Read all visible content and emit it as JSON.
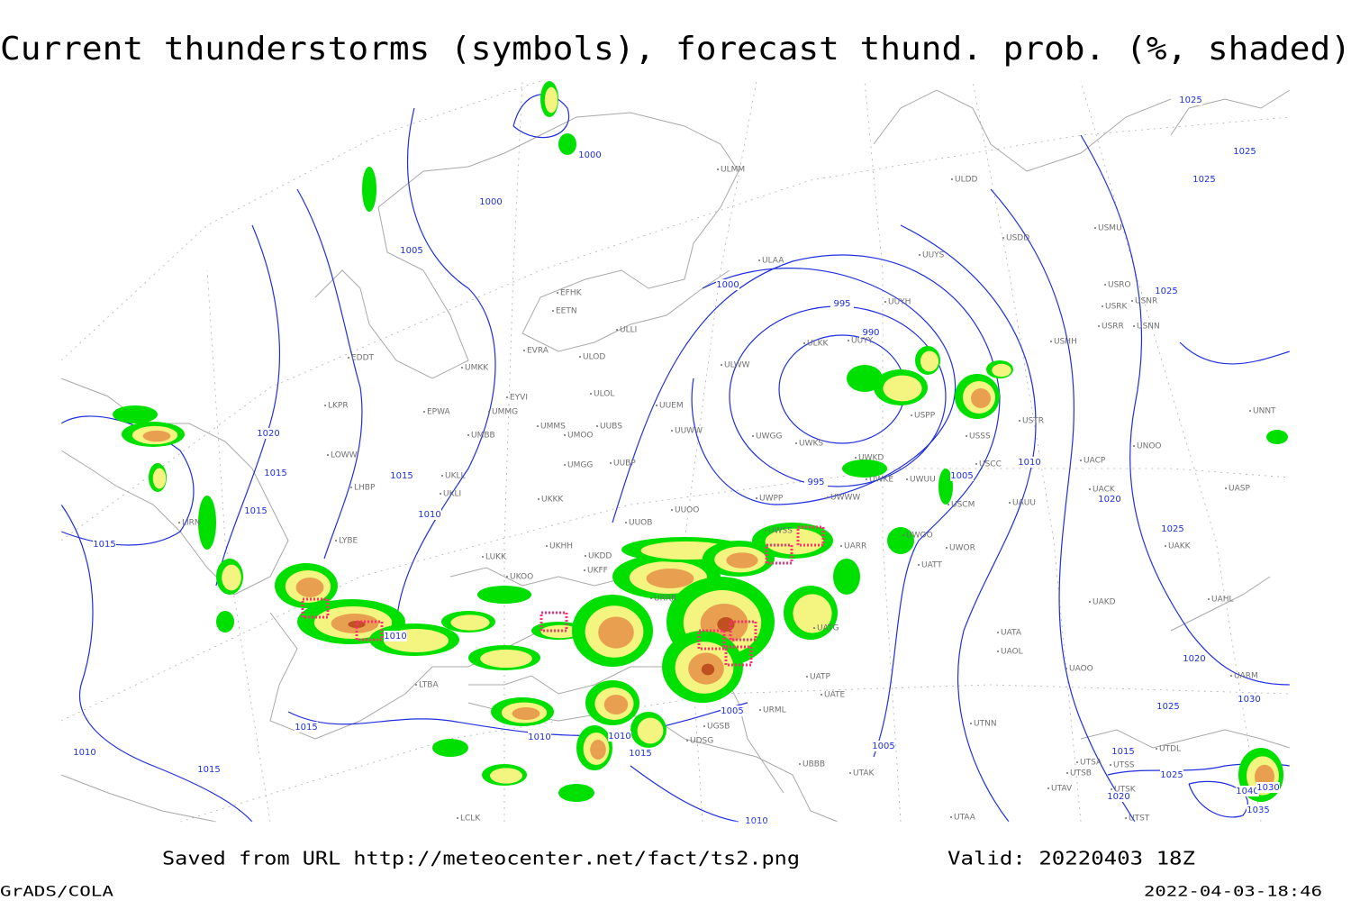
{
  "header": {
    "title": "Current thunderstorms (symbols), forecast thund. prob. (%, shaded)"
  },
  "footer": {
    "source": "Saved from URL  http://meteocenter.net/fact/ts2.png",
    "valid": "Valid: 20220403 18Z",
    "credit": "GrADS/COLA",
    "timestamp": "2022-04-03-18:46"
  },
  "map": {
    "isobar_labels": [
      1000,
      1000,
      1005,
      1000,
      995,
      990,
      1020,
      1015,
      1015,
      1015,
      1010,
      1015,
      1010,
      1005,
      1010,
      1020,
      1025,
      995,
      1015,
      1010,
      1010,
      1015,
      1005,
      1005,
      1010,
      1015,
      1010,
      1020,
      1025,
      1025,
      1025,
      1025,
      1030,
      1025,
      1015,
      1025,
      1020,
      1040,
      1030,
      1035
    ],
    "station_labels": [
      "EFHK",
      "EETN",
      "ULLI",
      "ULAA",
      "ULDD",
      "UUYS",
      "UUYH",
      "ULKK",
      "UUYY",
      "ULWW",
      "UUEM",
      "UUWW",
      "UWGG",
      "UWKS",
      "ULOL",
      "ULOD",
      "EVRA",
      "EYVI",
      "UMKK",
      "UMMG",
      "EPWA",
      "UMBB",
      "UMMS",
      "UMOO",
      "UUBS",
      "UMGG",
      "UUBP",
      "UKLL",
      "UKLI",
      "UKKK",
      "UUOO",
      "UUOB",
      "UWPP",
      "UWKE",
      "UWUU",
      "USCC",
      "USCM",
      "USSS",
      "USTR",
      "USPP",
      "UWKD",
      "UWWW",
      "UWSS",
      "UARR",
      "UWOO",
      "UWOR",
      "UATT",
      "UAOO",
      "UAOL",
      "UATA",
      "UAKD",
      "UACK",
      "UACP",
      "UAKK",
      "UASP",
      "UNOO",
      "UNNT",
      "USHH",
      "USRR",
      "USNN",
      "USRK",
      "USNR",
      "USRO",
      "USMU",
      "USDD",
      "ULMM",
      "LKPR",
      "EDDT",
      "LOWW",
      "LHBP",
      "LIRN",
      "LYBE",
      "LUKK",
      "UKOO",
      "UKHH",
      "UKDD",
      "UKFF",
      "URRR",
      "URML",
      "UATG",
      "UATP",
      "UATE",
      "UTAK",
      "UBBB",
      "UTAA",
      "UTNN",
      "UTDL",
      "UTSS",
      "UTSA",
      "UTSB",
      "UTAV",
      "UTSK",
      "UTST",
      "LTBA",
      "LCLK",
      "UGSB",
      "UDSG",
      "UAHL",
      "UARM",
      "UAUU"
    ]
  }
}
